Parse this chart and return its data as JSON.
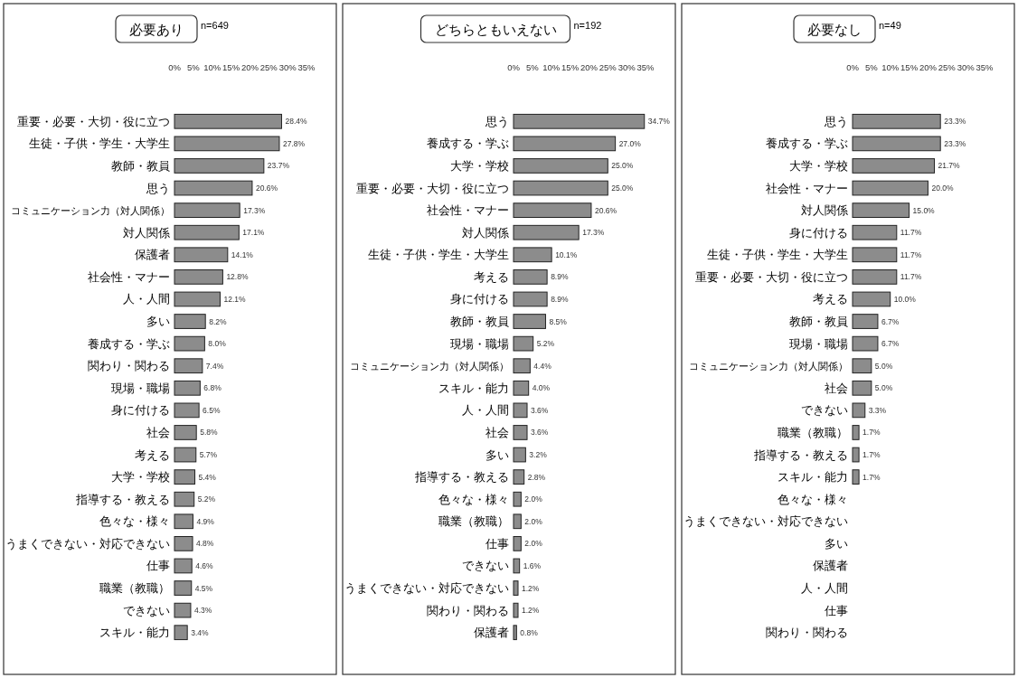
{
  "chart_data": [
    {
      "type": "bar",
      "orientation": "horizontal",
      "title": "必要あり",
      "subtitle": "n=649",
      "color": "#8c8c8c",
      "xlim": [
        0,
        35
      ],
      "xticks": [
        {
          "value": 0,
          "label": "0%"
        },
        {
          "value": 5,
          "label": "5%"
        },
        {
          "value": 10,
          "label": "10%"
        },
        {
          "value": 15,
          "label": "15%"
        },
        {
          "value": 20,
          "label": "20%"
        },
        {
          "value": 25,
          "label": "25%"
        },
        {
          "value": 30,
          "label": "30%"
        },
        {
          "value": 35,
          "label": "35%"
        }
      ],
      "categories": [
        "重要・必要・大切・役に立つ",
        "生徒・子供・学生・大学生",
        "教師・教員",
        "思う",
        "コミュニケーション力（対人関係）",
        "対人関係",
        "保護者",
        "社会性・マナー",
        "人・人間",
        "多い",
        "養成する・学ぶ",
        "関わり・関わる",
        "現場・職場",
        "身に付ける",
        "社会",
        "考える",
        "大学・学校",
        "指導する・教える",
        "色々な・様々",
        "うまくできない・対応できない",
        "仕事",
        "職業（教職）",
        "できない",
        "スキル・能力"
      ],
      "values": [
        28.4,
        27.8,
        23.7,
        20.6,
        17.3,
        17.1,
        14.1,
        12.8,
        12.1,
        8.2,
        8.0,
        7.4,
        6.8,
        6.5,
        5.8,
        5.7,
        5.4,
        5.2,
        4.9,
        4.8,
        4.6,
        4.5,
        4.3,
        3.4
      ],
      "value_labels": [
        "28.4%",
        "27.8%",
        "23.7%",
        "20.6%",
        "17.3%",
        "17.1%",
        "14.1%",
        "12.8%",
        "12.1%",
        "8.2%",
        "8.0%",
        "7.4%",
        "6.8%",
        "6.5%",
        "5.8%",
        "5.7%",
        "5.4%",
        "5.2%",
        "4.9%",
        "4.8%",
        "4.6%",
        "4.5%",
        "4.3%",
        "3.4%"
      ]
    },
    {
      "type": "bar",
      "orientation": "horizontal",
      "title": "どちらともいえない",
      "subtitle": "n=192",
      "color": "#8c8c8c",
      "xlim": [
        0,
        35
      ],
      "xticks": [
        {
          "value": 0,
          "label": "0%"
        },
        {
          "value": 5,
          "label": "5%"
        },
        {
          "value": 10,
          "label": "10%"
        },
        {
          "value": 15,
          "label": "15%"
        },
        {
          "value": 20,
          "label": "20%"
        },
        {
          "value": 25,
          "label": "25%"
        },
        {
          "value": 30,
          "label": "30%"
        },
        {
          "value": 35,
          "label": "35%"
        }
      ],
      "categories": [
        "思う",
        "養成する・学ぶ",
        "大学・学校",
        "重要・必要・大切・役に立つ",
        "社会性・マナー",
        "対人関係",
        "生徒・子供・学生・大学生",
        "考える",
        "身に付ける",
        "教師・教員",
        "現場・職場",
        "コミュニケーション力（対人関係）",
        "スキル・能力",
        "人・人間",
        "社会",
        "多い",
        "指導する・教える",
        "色々な・様々",
        "職業（教職）",
        "仕事",
        "できない",
        "うまくできない・対応できない",
        "関わり・関わる",
        "保護者"
      ],
      "values": [
        34.7,
        27.0,
        25.0,
        25.0,
        20.6,
        17.3,
        10.1,
        8.9,
        8.9,
        8.5,
        5.2,
        4.4,
        4.0,
        3.6,
        3.6,
        3.2,
        2.8,
        2.0,
        2.0,
        2.0,
        1.6,
        1.2,
        1.2,
        0.8
      ],
      "value_labels": [
        "34.7%",
        "27.0%",
        "25.0%",
        "25.0%",
        "20.6%",
        "17.3%",
        "10.1%",
        "8.9%",
        "8.9%",
        "8.5%",
        "5.2%",
        "4.4%",
        "4.0%",
        "3.6%",
        "3.6%",
        "3.2%",
        "2.8%",
        "2.0%",
        "2.0%",
        "2.0%",
        "1.6%",
        "1.2%",
        "1.2%",
        "0.8%"
      ]
    },
    {
      "type": "bar",
      "orientation": "horizontal",
      "title": "必要なし",
      "subtitle": "n=49",
      "color": "#8c8c8c",
      "xlim": [
        0,
        35
      ],
      "xticks": [
        {
          "value": 0,
          "label": "0%"
        },
        {
          "value": 5,
          "label": "5%"
        },
        {
          "value": 10,
          "label": "10%"
        },
        {
          "value": 15,
          "label": "15%"
        },
        {
          "value": 20,
          "label": "20%"
        },
        {
          "value": 25,
          "label": "25%"
        },
        {
          "value": 30,
          "label": "30%"
        },
        {
          "value": 35,
          "label": "35%"
        }
      ],
      "categories": [
        "思う",
        "養成する・学ぶ",
        "大学・学校",
        "社会性・マナー",
        "対人関係",
        "身に付ける",
        "生徒・子供・学生・大学生",
        "重要・必要・大切・役に立つ",
        "考える",
        "教師・教員",
        "現場・職場",
        "コミュニケーション力（対人関係）",
        "社会",
        "できない",
        "職業（教職）",
        "指導する・教える",
        "スキル・能力",
        "色々な・様々",
        "うまくできない・対応できない",
        "多い",
        "保護者",
        "人・人間",
        "仕事",
        "関わり・関わる"
      ],
      "values": [
        23.3,
        23.3,
        21.7,
        20.0,
        15.0,
        11.7,
        11.7,
        11.7,
        10.0,
        6.7,
        6.7,
        5.0,
        5.0,
        3.3,
        1.7,
        1.7,
        1.7,
        0,
        0,
        0,
        0,
        0,
        0,
        0
      ],
      "value_labels": [
        "23.3%",
        "23.3%",
        "21.7%",
        "20.0%",
        "15.0%",
        "11.7%",
        "11.7%",
        "11.7%",
        "10.0%",
        "6.7%",
        "6.7%",
        "5.0%",
        "5.0%",
        "3.3%",
        "1.7%",
        "1.7%",
        "1.7%",
        null,
        null,
        null,
        null,
        null,
        null,
        null
      ]
    }
  ]
}
